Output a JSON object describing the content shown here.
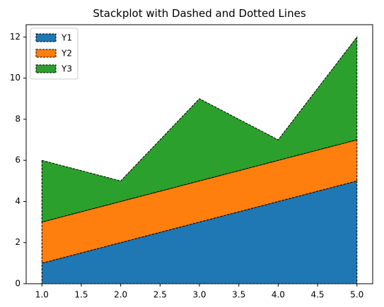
{
  "chart_data": {
    "type": "area",
    "title": "Stackplot with Dashed and Dotted Lines",
    "xlabel": "",
    "ylabel": "",
    "x": [
      1,
      2,
      3,
      4,
      5
    ],
    "series": [
      {
        "name": "Y1",
        "values": [
          1,
          2,
          3,
          4,
          5
        ],
        "color": "#1f77b4"
      },
      {
        "name": "Y2",
        "values": [
          2,
          2,
          2,
          2,
          2
        ],
        "color": "#ff7f0e"
      },
      {
        "name": "Y3",
        "values": [
          3,
          1,
          4,
          1,
          5
        ],
        "color": "#2ca02c"
      }
    ],
    "xlim": [
      0.8,
      5.2
    ],
    "ylim": [
      0,
      12.6
    ],
    "x_ticks": [
      1.0,
      1.5,
      2.0,
      2.5,
      3.0,
      3.5,
      4.0,
      4.5,
      5.0
    ],
    "x_tick_labels": [
      "1.0",
      "1.5",
      "2.0",
      "2.5",
      "3.0",
      "3.5",
      "4.0",
      "4.5",
      "5.0"
    ],
    "y_ticks": [
      0,
      2,
      4,
      6,
      8,
      10,
      12
    ],
    "y_tick_labels": [
      "0",
      "2",
      "4",
      "6",
      "8",
      "10",
      "12"
    ],
    "grid": false,
    "legend_position": "top-left",
    "edge_style": "dashed",
    "edge_color": "#000000"
  }
}
